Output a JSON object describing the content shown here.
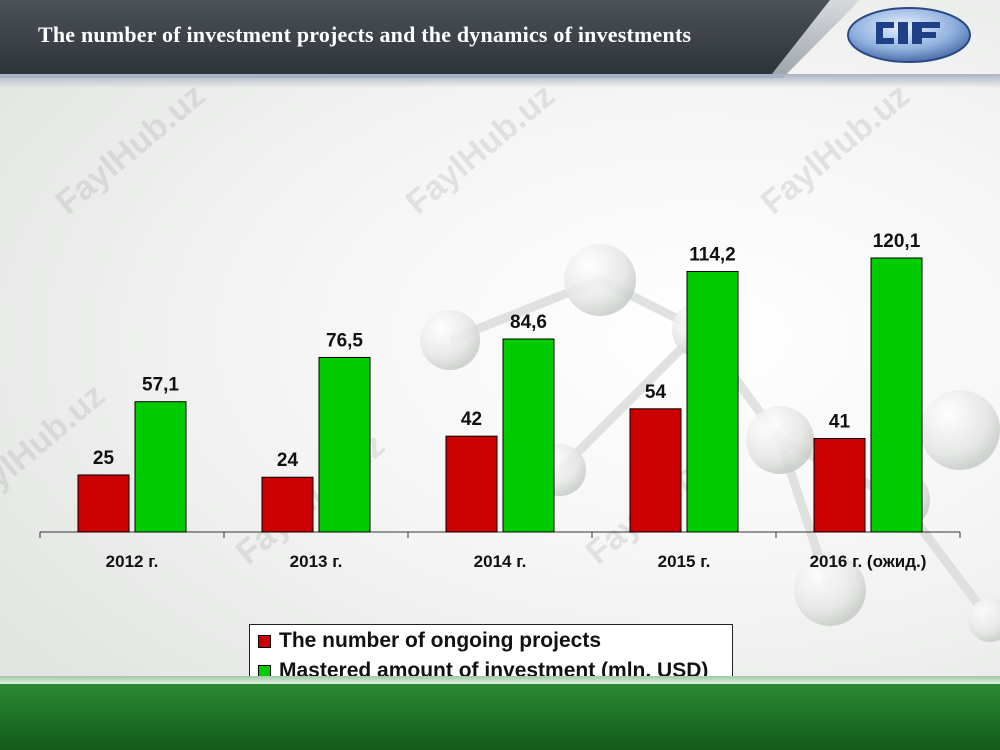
{
  "slide": {
    "title": "The number of investment projects and the dynamics of investments",
    "watermark": "FaylHub.uz"
  },
  "colors": {
    "projects": "#cc0000",
    "investment": "#00cc00",
    "header": "#3a4046",
    "footer": "#1e7526"
  },
  "chart_data": {
    "type": "bar",
    "title": "",
    "xlabel": "",
    "ylabel": "",
    "ylim": [
      0,
      130
    ],
    "categories": [
      "2012 г.",
      "2013 г.",
      "2014 г.",
      "2015 г.",
      "2016 г. (ожид.)"
    ],
    "series": [
      {
        "name": "The number of ongoing projects",
        "values": [
          25,
          24,
          42,
          54,
          41
        ],
        "labels": [
          "25",
          "24",
          "42",
          "54",
          "41"
        ],
        "color": "#cc0000"
      },
      {
        "name": "Mastered amount of investment (mln. USD)",
        "values": [
          57.1,
          76.5,
          84.6,
          114.2,
          120.1
        ],
        "labels": [
          "57,1",
          "76,5",
          "84,6",
          "114,2",
          "120,1"
        ],
        "color": "#00cc00"
      }
    ],
    "legend": "bottom",
    "grid": false
  }
}
